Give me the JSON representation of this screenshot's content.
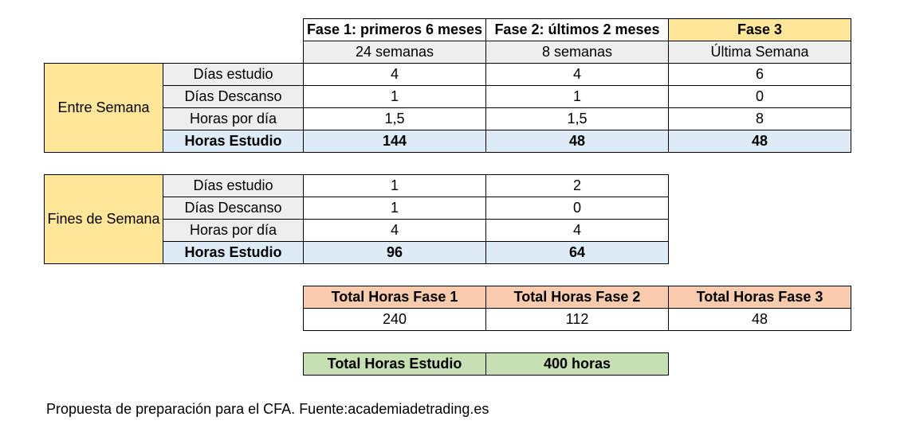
{
  "header": {
    "phases": [
      "Fase 1: primeros 6 meses",
      "Fase 2: últimos 2 meses",
      "Fase 3"
    ],
    "durations": [
      "24 semanas",
      "8 semanas",
      "Última Semana"
    ]
  },
  "weekdays": {
    "group_label": "Entre Semana",
    "rows": [
      {
        "label": "Días estudio",
        "values": [
          "4",
          "4",
          "6"
        ]
      },
      {
        "label": "Días Descanso",
        "values": [
          "1",
          "1",
          "0"
        ]
      },
      {
        "label": "Horas por día",
        "values": [
          "1,5",
          "1,5",
          "8"
        ]
      },
      {
        "label": "Horas Estudio",
        "values": [
          "144",
          "48",
          "48"
        ]
      }
    ]
  },
  "weekends": {
    "group_label": "Fines de Semana",
    "rows": [
      {
        "label": "Días estudio",
        "values": [
          "1",
          "2"
        ]
      },
      {
        "label": "Días Descanso",
        "values": [
          "1",
          "0"
        ]
      },
      {
        "label": "Horas por día",
        "values": [
          "4",
          "4"
        ]
      },
      {
        "label": "Horas Estudio",
        "values": [
          "96",
          "64"
        ]
      }
    ]
  },
  "totals": {
    "headers": [
      "Total Horas Fase 1",
      "Total Horas Fase 2",
      "Total Horas Fase 3"
    ],
    "values": [
      "240",
      "112",
      "48"
    ]
  },
  "grand_total": {
    "label": "Total Horas Estudio",
    "value": "400 horas"
  },
  "footer": "Propuesta de preparación para el CFA. Fuente:academiadetrading.es",
  "colors": {
    "yellow": "#ffe699",
    "gray": "#eeeeee",
    "blue": "#ddebf7",
    "orange": "#f8cbad",
    "green": "#c6e0b4"
  }
}
